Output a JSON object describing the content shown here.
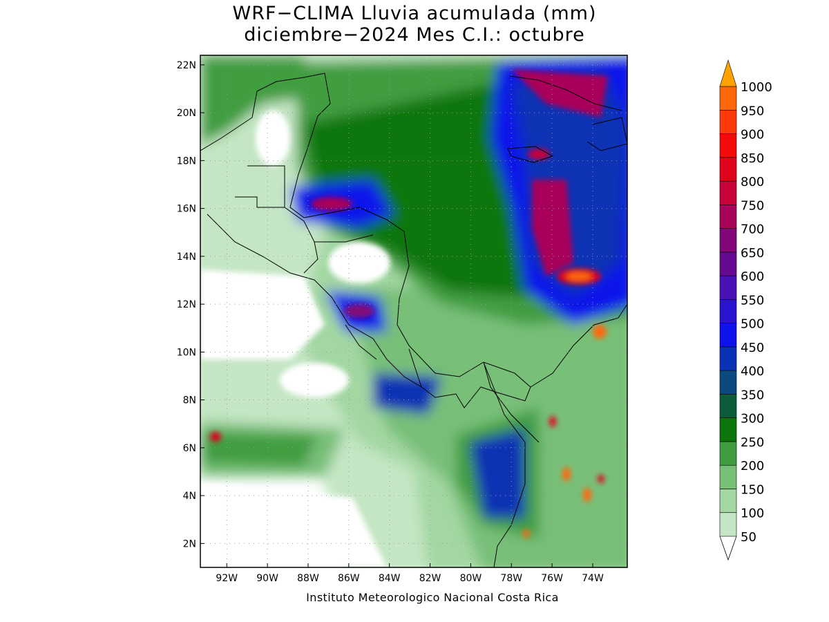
{
  "header": {
    "title_line1": "WRF−CLIMA Lluvia acumulada (mm)",
    "title_line2": "diciembre−2024 Mes C.I.: octubre"
  },
  "map": {
    "lat_labels": [
      "2N",
      "4N",
      "6N",
      "8N",
      "10N",
      "12N",
      "14N",
      "16N",
      "18N",
      "20N",
      "22N"
    ],
    "lon_labels": [
      "92W",
      "90W",
      "88W",
      "86W",
      "84W",
      "82W",
      "80W",
      "78W",
      "76W",
      "74W"
    ],
    "lat_values": [
      2,
      4,
      6,
      8,
      10,
      12,
      14,
      16,
      18,
      20,
      22
    ],
    "lon_values": [
      -92,
      -90,
      -88,
      -86,
      -84,
      -82,
      -80,
      -78,
      -76,
      -74
    ],
    "lat_range": [
      1.0,
      22.4
    ],
    "lon_range": [
      -93.3,
      -72.3
    ],
    "grid": true
  },
  "legend": {
    "levels": [
      50,
      100,
      150,
      200,
      250,
      300,
      350,
      400,
      450,
      500,
      550,
      600,
      650,
      700,
      750,
      800,
      850,
      900,
      950,
      1000
    ],
    "colors": [
      "#c4e6c4",
      "#a2d7a2",
      "#78bf78",
      "#3f9d3f",
      "#0c760c",
      "#0c5c3c",
      "#0b4a80",
      "#0b32b4",
      "#0f12ea",
      "#2b14d0",
      "#4a12b4",
      "#650a90",
      "#830778",
      "#a8045a",
      "#c8033a",
      "#e0031c",
      "#f50a0a",
      "#ff3a0a",
      "#ff680a",
      "#ff8c0a"
    ],
    "arrow_color": "#ffa200"
  },
  "footer": {
    "credit": "Instituto Meteorologico Nacional Costa Rica"
  }
}
